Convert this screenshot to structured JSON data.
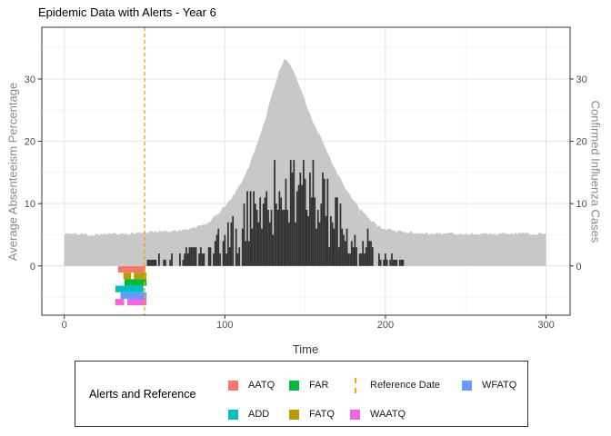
{
  "title": "Epidemic Data with Alerts - Year 6",
  "chart_data": {
    "type": "composite",
    "title": "Epidemic Data with Alerts - Year 6",
    "x_axis": {
      "label": "Time",
      "ticks": [
        0,
        100,
        200,
        300
      ],
      "minor_ticks": [
        50,
        150,
        250
      ],
      "range": [
        -14,
        315
      ]
    },
    "y_axis_left": {
      "label": "Average Absenteeism Percentage",
      "ticks": [
        0,
        10,
        20,
        30
      ],
      "minor_ticks": [
        -5,
        5,
        15,
        25,
        35
      ],
      "range": [
        -7.9,
        38.3
      ]
    },
    "y_axis_right": {
      "label": "Confirmed Influenza Cases",
      "ticks": [
        0,
        10,
        20,
        30
      ]
    },
    "reference_date": 50,
    "reference_line_color": "#FFA500",
    "grid": {
      "major_color": "#E4E4E4",
      "minor_color": "#F1F1F1",
      "panel_border_color": "#333333"
    },
    "series": [
      {
        "name": "Average Absenteeism Percentage",
        "type": "area",
        "color": "#C8C8C8",
        "points": [
          [
            0,
            5.2
          ],
          [
            5,
            5.1
          ],
          [
            10,
            5.2
          ],
          [
            15,
            5.0
          ],
          [
            20,
            5.1
          ],
          [
            25,
            5.2
          ],
          [
            30,
            5.1
          ],
          [
            35,
            5.3
          ],
          [
            40,
            5.2
          ],
          [
            45,
            5.3
          ],
          [
            50,
            5.4
          ],
          [
            55,
            5.5
          ],
          [
            60,
            5.5
          ],
          [
            65,
            5.6
          ],
          [
            70,
            5.7
          ],
          [
            75,
            5.8
          ],
          [
            80,
            6.0
          ],
          [
            85,
            6.4
          ],
          [
            90,
            7.0
          ],
          [
            95,
            8.2
          ],
          [
            100,
            9.6
          ],
          [
            105,
            11.2
          ],
          [
            110,
            13.2
          ],
          [
            115,
            16.0
          ],
          [
            120,
            19.5
          ],
          [
            125,
            23.5
          ],
          [
            130,
            28.0
          ],
          [
            134,
            31.5
          ],
          [
            137,
            33.0
          ],
          [
            140,
            32.5
          ],
          [
            143,
            31.0
          ],
          [
            147,
            28.5
          ],
          [
            152,
            25.0
          ],
          [
            157,
            22.0
          ],
          [
            161,
            20.0
          ],
          [
            166,
            17.0
          ],
          [
            170,
            15.0
          ],
          [
            175,
            12.5
          ],
          [
            180,
            10.5
          ],
          [
            185,
            8.8
          ],
          [
            190,
            7.5
          ],
          [
            195,
            6.5
          ],
          [
            200,
            5.9
          ],
          [
            210,
            5.5
          ],
          [
            220,
            5.3
          ],
          [
            230,
            5.2
          ],
          [
            240,
            5.2
          ],
          [
            250,
            5.1
          ],
          [
            260,
            5.2
          ],
          [
            270,
            5.1
          ],
          [
            280,
            5.2
          ],
          [
            290,
            5.1
          ],
          [
            300,
            5.2
          ]
        ],
        "noise_amplitude": 0.5
      },
      {
        "name": "Confirmed Influenza Cases",
        "type": "bar",
        "color": "#333333",
        "bar_start": 51,
        "bar_end": 214,
        "peak_value": 17,
        "envelope": [
          [
            50,
            0
          ],
          [
            52,
            1
          ],
          [
            55,
            1.2
          ],
          [
            60,
            1.5
          ],
          [
            65,
            1.2
          ],
          [
            70,
            1.5
          ],
          [
            75,
            2
          ],
          [
            80,
            2.2
          ],
          [
            85,
            2.6
          ],
          [
            90,
            3
          ],
          [
            95,
            3.6
          ],
          [
            100,
            4.5
          ],
          [
            105,
            5.2
          ],
          [
            110,
            6
          ],
          [
            115,
            7
          ],
          [
            120,
            8.5
          ],
          [
            125,
            10
          ],
          [
            130,
            11
          ],
          [
            135,
            12
          ],
          [
            140,
            13
          ],
          [
            145,
            13
          ],
          [
            150,
            12
          ],
          [
            155,
            11
          ],
          [
            160,
            9.5
          ],
          [
            165,
            8
          ],
          [
            170,
            7
          ],
          [
            175,
            5.5
          ],
          [
            180,
            4.5
          ],
          [
            185,
            3.5
          ],
          [
            190,
            2.5
          ],
          [
            195,
            2
          ],
          [
            200,
            1.5
          ],
          [
            205,
            1
          ],
          [
            210,
            0.6
          ],
          [
            214,
            0.4
          ],
          [
            215,
            0
          ]
        ],
        "noise_seed": 1337
      }
    ],
    "alerts": [
      {
        "name": "AATQ",
        "color": "#F8766D",
        "y": -0.55,
        "segments": [
          [
            33.5,
            50.5
          ]
        ]
      },
      {
        "name": "FATQ",
        "color": "#B79F00",
        "y": -1.6,
        "segments": [
          [
            36.8,
            41.6
          ],
          [
            43.3,
            51.2
          ]
        ]
      },
      {
        "name": "FAR",
        "color": "#00BA38",
        "y": -2.65,
        "segments": [
          [
            37.5,
            51.2
          ]
        ]
      },
      {
        "name": "ADD",
        "color": "#00BFC4",
        "y": -3.7,
        "segments": [
          [
            31.8,
            49.3
          ]
        ]
      },
      {
        "name": "WFATQ",
        "color": "#619CFF",
        "y": -4.75,
        "segments": [
          [
            35.0,
            51.2
          ]
        ]
      },
      {
        "name": "WAATQ",
        "color": "#F564E3",
        "y": -5.8,
        "segments": [
          [
            31.8,
            37.3
          ],
          [
            39.2,
            51.2
          ]
        ]
      }
    ]
  },
  "legend": {
    "title": "Alerts and Reference",
    "items": [
      {
        "label": "AATQ",
        "color": "#F8766D",
        "type": "square",
        "col": 0,
        "row": 0
      },
      {
        "label": "ADD",
        "color": "#00BFC4",
        "type": "square",
        "col": 0,
        "row": 1
      },
      {
        "label": "FAR",
        "color": "#00BA38",
        "type": "square",
        "col": 1,
        "row": 0
      },
      {
        "label": "FATQ",
        "color": "#B79F00",
        "type": "square",
        "col": 1,
        "row": 1
      },
      {
        "label": "Reference Date",
        "color": "#FFA500",
        "type": "dashed-line",
        "col": 2,
        "row": 0
      },
      {
        "label": "WAATQ",
        "color": "#F564E3",
        "type": "square",
        "col": 2,
        "row": 1
      },
      {
        "label": "WFATQ",
        "color": "#619CFF",
        "type": "square",
        "col": 3,
        "row": 0
      }
    ]
  }
}
